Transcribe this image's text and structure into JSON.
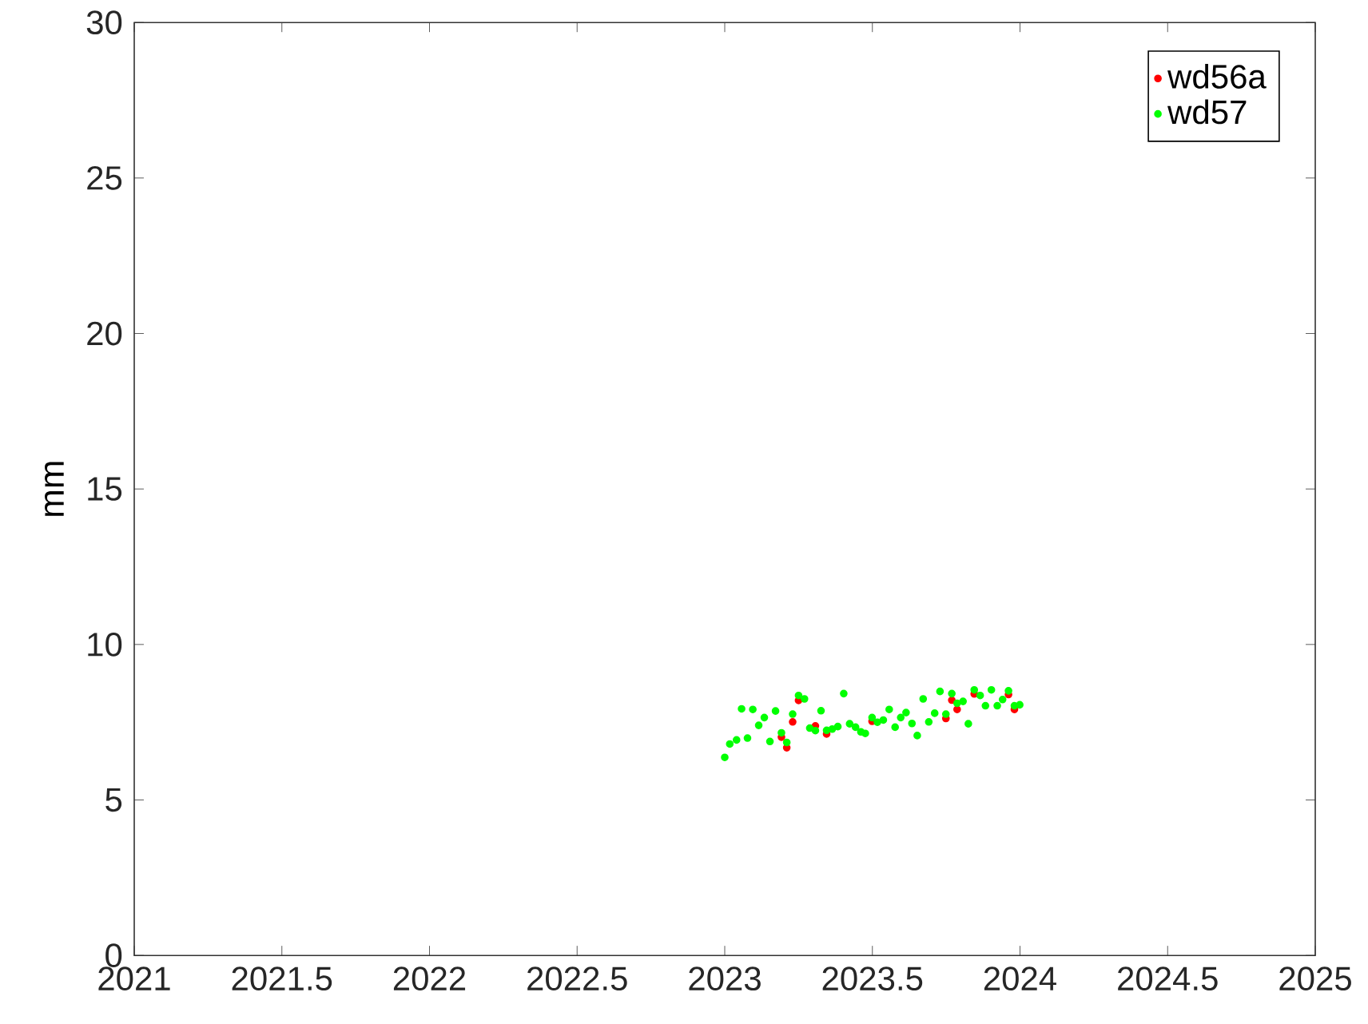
{
  "chart_data": {
    "type": "scatter",
    "ylabel": "mm",
    "xlim": [
      2021,
      2025
    ],
    "ylim": [
      0,
      30
    ],
    "xticks": [
      2021,
      2021.5,
      2022,
      2022.5,
      2023,
      2023.5,
      2024,
      2024.5,
      2025
    ],
    "yticks": [
      0,
      5,
      10,
      15,
      20,
      25,
      30
    ],
    "legend": "top right",
    "grid": false,
    "x": [
      2023.0,
      2023.017,
      2023.04,
      2023.057,
      2023.077,
      2023.095,
      2023.115,
      2023.134,
      2023.153,
      2023.172,
      2023.192,
      2023.21,
      2023.23,
      2023.25,
      2023.27,
      2023.288,
      2023.307,
      2023.326,
      2023.345,
      2023.364,
      2023.383,
      2023.403,
      2023.423,
      2023.443,
      2023.461,
      2023.476,
      2023.499,
      2023.517,
      2023.537,
      2023.557,
      2023.577,
      2023.596,
      2023.614,
      2023.634,
      2023.652,
      2023.672,
      2023.691,
      2023.711,
      2023.729,
      2023.749,
      2023.769,
      2023.787,
      2023.807,
      2023.825,
      2023.845,
      2023.865,
      2023.883,
      2023.903,
      2023.923,
      2023.941,
      2023.961,
      2023.981,
      2023.999
    ],
    "series": [
      {
        "name": "wd56a",
        "color": "#ff0000",
        "values": [
          null,
          null,
          null,
          null,
          null,
          null,
          null,
          null,
          null,
          null,
          7.02,
          6.68,
          7.51,
          8.2,
          null,
          null,
          7.38,
          null,
          7.12,
          null,
          null,
          null,
          null,
          null,
          null,
          null,
          7.53,
          null,
          null,
          null,
          null,
          null,
          null,
          null,
          null,
          null,
          null,
          null,
          null,
          7.62,
          8.21,
          7.91,
          null,
          null,
          8.41,
          null,
          null,
          null,
          null,
          null,
          8.39,
          7.91,
          null
        ]
      },
      {
        "name": "wd57",
        "color": "#00ff00",
        "values": [
          6.37,
          6.8,
          6.93,
          7.93,
          6.99,
          7.91,
          7.4,
          7.65,
          6.88,
          7.86,
          7.16,
          6.85,
          7.76,
          8.36,
          8.25,
          7.31,
          7.23,
          7.87,
          7.24,
          7.28,
          7.36,
          8.42,
          7.45,
          7.34,
          7.19,
          7.14,
          7.65,
          7.5,
          7.57,
          7.91,
          7.34,
          7.65,
          7.81,
          7.46,
          7.07,
          8.25,
          7.51,
          7.79,
          8.49,
          7.76,
          8.42,
          8.11,
          8.17,
          7.45,
          8.54,
          8.36,
          8.03,
          8.54,
          8.03,
          8.23,
          8.51,
          8.03,
          8.06
        ]
      }
    ]
  }
}
